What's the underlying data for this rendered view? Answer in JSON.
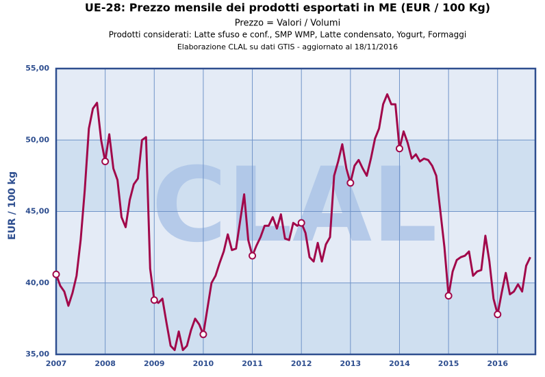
{
  "chart_data": {
    "type": "line",
    "title": "UE-28: Prezzo mensile dei prodotti esportati in ME (EUR / 100 Kg)",
    "subtitle": "Prezzo = Valori / Volumi",
    "note1": "Prodotti considerati: Latte sfuso e conf., SMP WMP, Latte condensato, Yogurt, Formaggi",
    "note2": "Elaborazione CLAL su dati GTIS - aggiornato al 18/11/2016",
    "watermark": "CLAL",
    "ylabel": "EUR / 100 kg",
    "categories": [
      "2007",
      null,
      null,
      null,
      null,
      null,
      null,
      null,
      null,
      null,
      null,
      null,
      "2008",
      null,
      null,
      null,
      null,
      null,
      null,
      null,
      null,
      null,
      null,
      null,
      "2009",
      null,
      null,
      null,
      null,
      null,
      null,
      null,
      null,
      null,
      null,
      null,
      "2010",
      null,
      null,
      null,
      null,
      null,
      null,
      null,
      null,
      null,
      null,
      null,
      "2011",
      null,
      null,
      null,
      null,
      null,
      null,
      null,
      null,
      null,
      null,
      null,
      "2012",
      null,
      null,
      null,
      null,
      null,
      null,
      null,
      null,
      null,
      null,
      null,
      "2013",
      null,
      null,
      null,
      null,
      null,
      null,
      null,
      null,
      null,
      null,
      null,
      "2014",
      null,
      null,
      null,
      null,
      null,
      null,
      null,
      null,
      null,
      null,
      null,
      "2015",
      null,
      null,
      null,
      null,
      null,
      null,
      null,
      null,
      null,
      null,
      null,
      "2016",
      null,
      null,
      null,
      null,
      null,
      null,
      null,
      null
    ],
    "series": [
      {
        "color": "#a1084a",
        "values": [
          40.6,
          39.8,
          39.4,
          38.4,
          39.3,
          40.5,
          43.0,
          46.5,
          50.8,
          52.2,
          52.6,
          50.0,
          48.5,
          50.4,
          48.0,
          47.2,
          44.6,
          43.9,
          45.8,
          46.9,
          47.3,
          50.0,
          50.2,
          41.0,
          38.8,
          38.6,
          38.9,
          37.2,
          35.6,
          35.3,
          36.6,
          35.3,
          35.6,
          36.7,
          37.5,
          37.1,
          36.4,
          38.2,
          40.0,
          40.5,
          41.4,
          42.2,
          43.4,
          42.3,
          42.4,
          44.3,
          46.2,
          43.0,
          41.9,
          42.6,
          43.2,
          44.0,
          44.0,
          44.6,
          43.8,
          44.8,
          43.1,
          43.0,
          44.2,
          44.0,
          44.2,
          43.5,
          41.8,
          41.5,
          42.8,
          41.5,
          42.7,
          43.2,
          47.5,
          48.5,
          49.7,
          48.0,
          47.0,
          48.2,
          48.6,
          48.0,
          47.5,
          48.7,
          50.1,
          50.8,
          52.5,
          53.2,
          52.5,
          52.5,
          49.4,
          50.6,
          49.8,
          48.7,
          49.0,
          48.5,
          48.7,
          48.6,
          48.2,
          47.5,
          45.0,
          42.5,
          39.1,
          40.8,
          41.6,
          41.8,
          41.9,
          42.2,
          40.5,
          40.8,
          40.9,
          43.3,
          41.5,
          38.9,
          37.8,
          39.3,
          40.7,
          39.2,
          39.4,
          39.9,
          39.4,
          41.2,
          41.8
        ]
      }
    ],
    "ylim": [
      35,
      55
    ],
    "yticks": [
      {
        "value": 35,
        "label": "35,00"
      },
      {
        "value": 40,
        "label": "40,00"
      },
      {
        "value": 45,
        "label": "45,00"
      },
      {
        "value": 50,
        "label": "50,00"
      },
      {
        "value": 55,
        "label": "55,00"
      }
    ],
    "grid": true
  }
}
